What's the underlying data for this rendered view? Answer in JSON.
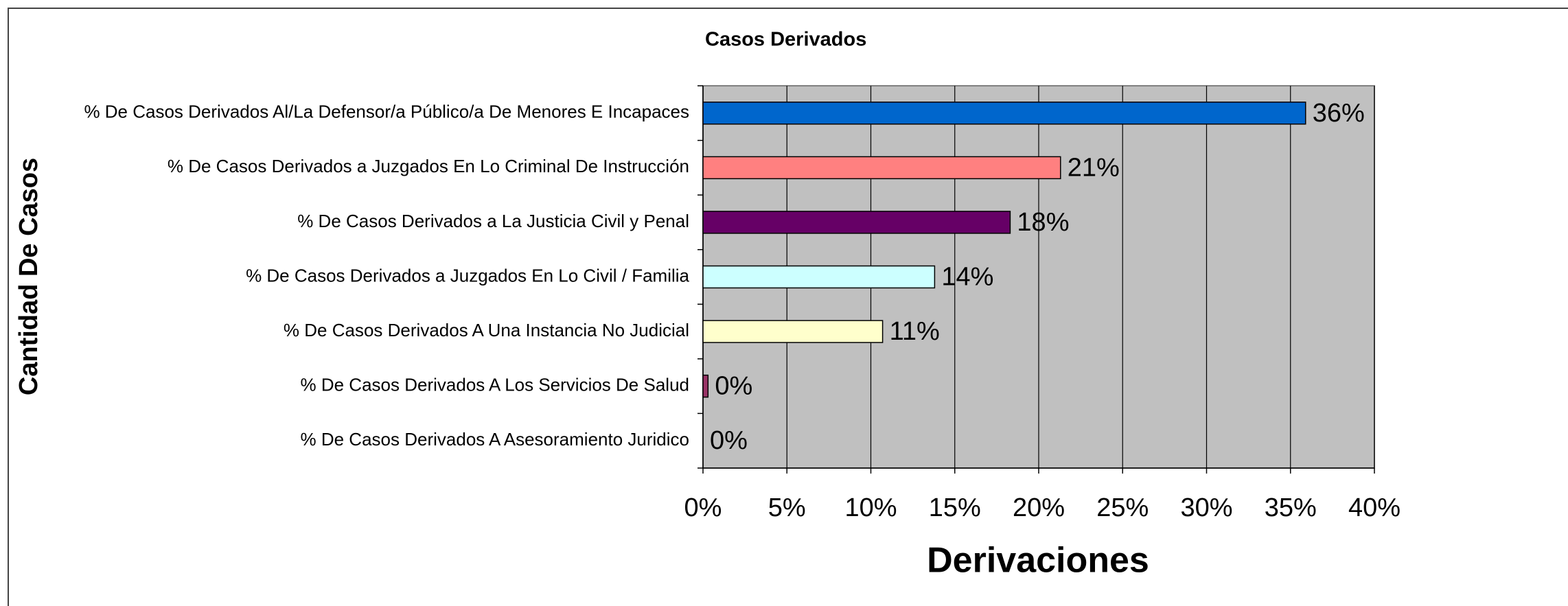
{
  "chart_data": {
    "type": "hbar",
    "title": "Casos Derivados",
    "xlabel": "Derivaciones",
    "ylabel": "Cantidad De Casos",
    "categories": [
      "% De Casos Derivados Al/La Defensor/a Público/a De Menores E Incapaces",
      "% De Casos Derivados a Juzgados En Lo Criminal De Instrucción",
      "% De Casos Derivados a La Justicia Civil y Penal",
      "% De Casos Derivados a Juzgados En Lo Civil / Familia",
      "% De Casos Derivados A Una Instancia No Judicial",
      "% De Casos Derivados A Los Servicios De Salud",
      "% De Casos Derivados A Asesoramiento Juridico"
    ],
    "values": [
      35.9,
      21.3,
      18.3,
      13.8,
      10.7,
      0.3,
      0
    ],
    "value_labels": [
      "36%",
      "21%",
      "18%",
      "14%",
      "11%",
      "0%",
      "0%"
    ],
    "colors": [
      "#0066cc",
      "#ff8080",
      "#660066",
      "#ccffff",
      "#ffffcc",
      "#993366",
      "#c0c0c0"
    ],
    "xlim": [
      0,
      40
    ],
    "xticks": [
      {
        "value": 0,
        "label": "0%"
      },
      {
        "value": 5,
        "label": "5%"
      },
      {
        "value": 10,
        "label": "10%"
      },
      {
        "value": 15,
        "label": "15%"
      },
      {
        "value": 20,
        "label": "20%"
      },
      {
        "value": 25,
        "label": "25%"
      },
      {
        "value": 30,
        "label": "30%"
      },
      {
        "value": 35,
        "label": "35%"
      },
      {
        "value": 40,
        "label": "40%"
      }
    ],
    "grid": true
  }
}
